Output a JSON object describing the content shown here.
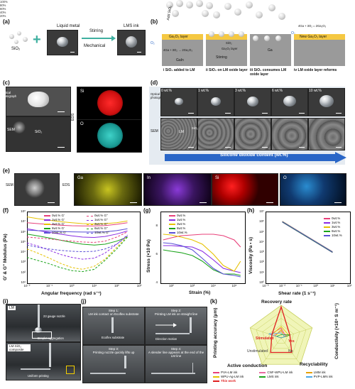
{
  "panels": {
    "a": "(a)",
    "b": "(b)",
    "c": "(c)",
    "d": "(d)",
    "e": "(e)",
    "f": "(f)",
    "g": "(g)",
    "h": "(h)",
    "i": "(i)",
    "j": "(j)",
    "k": "(k)"
  },
  "a": {
    "sio2": "SiO₂",
    "liquid_metal": "Liquid metal",
    "stirring": "Stirring",
    "mechanical": "Mechanical",
    "lms_ink": "LMS ink"
  },
  "b": {
    "add_sio2": "Add SiO₂",
    "o2": "O₂",
    "ga2o3_layer": "Ga₂O₃ layer",
    "reaction1": "4Ga + 3O₂ → 2Ga₂O₃",
    "gain": "GaIn",
    "sio2": "SiO₂",
    "ga2o3_small": "Ga₂O₃ layer",
    "stirring": "Stirring",
    "ga": "Ga",
    "reaction2": "4Ga + 3O₂ = 2Ga₂O₃",
    "new_layer": "New Ga₂O₃ layer",
    "step1": "i SiO₂ added to LM",
    "step2": "ii SiO₂ on LM oxide layer",
    "step3": "iii SiO₂ consumes LM oxide layer",
    "step4": "iv LM oxide layer reforms"
  },
  "c": {
    "optical": "Optical photograph",
    "sem": "SEM",
    "eds": "EDS",
    "si": "Si",
    "o": "O",
    "sio2": "SiO₂"
  },
  "d": {
    "optical": "Optical photograph",
    "sem": "SEM",
    "labels": [
      "0 wt.%",
      "1 wt.%",
      "3 wt.%",
      "6 wt.%",
      "10 wt.%"
    ],
    "lm": "LM",
    "sio2": "SiO₂",
    "arrow": "Silicone dioxide content (wt.%)"
  },
  "e": {
    "sem": "SEM",
    "eds": "EDS",
    "ga": "Ga",
    "in": "In",
    "si": "Si",
    "o": "O"
  },
  "f": {
    "ylabel": "G' & G'' Modulus (Pa)",
    "xlabel": "Angular frequency (rad s⁻¹)",
    "yticks": [
      "10⁸",
      "10⁷",
      "10⁶",
      "10⁵",
      "10⁴",
      "10³",
      "10²",
      "10¹"
    ],
    "xticks": [
      "10⁻²",
      "10⁻¹",
      "10⁰",
      "10¹",
      "10²",
      "10³"
    ],
    "legend": [
      "0wt.% G'",
      "1wt.% G'",
      "3wt.% G'",
      "6wt.% G'",
      "10wt.% G'",
      "0wt.% G''",
      "1wt.% G''",
      "3wt.% G''",
      "6wt.% G''",
      "10wt.% G''"
    ]
  },
  "g": {
    "ylabel": "Stress (×10 Pa)",
    "xlabel": "Strain (%)",
    "yticks": [
      "8",
      "6",
      "4"
    ],
    "xticks": [
      "10²",
      "10³",
      "10⁴",
      "10⁵"
    ],
    "legend": [
      "0wt.%",
      "1wt.%",
      "3wt.%",
      "6wt.%",
      "10wt.%"
    ]
  },
  "h": {
    "ylabel": "Viscosity (Pa • s)",
    "xlabel": "Shear rate (1 s⁻¹)",
    "yticks": [
      "10⁷",
      "10⁶",
      "10⁵",
      "10⁴",
      "10³",
      "10²",
      "10¹",
      "10⁰"
    ],
    "xticks": [
      "10⁻³",
      "10⁻²",
      "10⁻¹",
      "10⁰",
      "10¹",
      "10²"
    ],
    "legend": [
      "0wt.%",
      "1wt.%",
      "3wt.%",
      "6wt.%",
      "10wt.%"
    ]
  },
  "i": {
    "lm": "LM",
    "nozzle": "23 gauge nozzle",
    "droplet": "Droplet aggregation",
    "lm_sio2": "LM-SiO₂ composite",
    "uniform": "Uniform printing"
  },
  "j": {
    "step1": "Step 1:\nLM ink contact on Ecoflex substrate",
    "step2": "Step 2:\nPrinting LM ink on straight line",
    "step3": "Step 3:\nPrinting nozzle quickly lifts up",
    "step4": "Step 4:\nA slender line appears at the end of the LM line",
    "ecoflex": "Ecoflex substrate",
    "direction": "Direction motion"
  },
  "k": {
    "axes": [
      "Recovery rate",
      "Conductivity (×10⁵ S m⁻¹)",
      "Recyclability",
      "Active conduction",
      "Printing accuracy (μm)"
    ],
    "rticks": [
      "100%",
      "80%",
      "60%",
      "40%",
      "20%"
    ],
    "stimulated": "Stimulated",
    "unstimulated": "Unstimulated",
    "yes": "Yes",
    "no": "No",
    "legend": [
      "PVA-LM ink",
      "CNF-WPU-LM ink",
      "LMM ink",
      "WPU-Ag-LM ink",
      "LMS ink",
      "PVP-LMN ink",
      "This work"
    ]
  },
  "colors": {
    "c0": "#e8407a",
    "c1": "#8a2be2",
    "c3": "#e6c200",
    "c6": "#19a319",
    "c10": "#5a4fd6",
    "arrow": "#2a66c7",
    "radar_fill": "#f0f5b8",
    "radar_edge": "#c8d060"
  },
  "chart_data": [
    {
      "type": "line",
      "title": "",
      "xlabel": "Angular frequency (rad s⁻¹)",
      "ylabel": "G' & G'' Modulus (Pa)",
      "xscale": "log",
      "yscale": "log",
      "xlim": [
        0.01,
        1000
      ],
      "ylim": [
        10,
        100000000
      ],
      "x": [
        0.01,
        0.03,
        0.1,
        0.3,
        1,
        3,
        10,
        30,
        100,
        300
      ],
      "series": [
        {
          "name": "0wt.% G'",
          "values": [
            8000000,
            6500000,
            5200000,
            4500000,
            4000000,
            3800000,
            3800000,
            4200000,
            5500000,
            8000000
          ]
        },
        {
          "name": "1wt.% G'",
          "values": [
            2000000,
            1300000,
            900000,
            600000,
            400000,
            300000,
            280000,
            350000,
            600000,
            1200000
          ]
        },
        {
          "name": "3wt.% G'",
          "values": [
            30000000,
            20000000,
            14000000,
            10000000,
            8000000,
            6500000,
            6000000,
            6500000,
            8000000,
            12000000
          ]
        },
        {
          "name": "6wt.% G'",
          "values": [
            600000,
            400000,
            250000,
            150000,
            90000,
            60000,
            50000,
            60000,
            120000,
            300000
          ]
        },
        {
          "name": "10wt.% G'",
          "values": [
            1500000,
            1300000,
            1200000,
            1100000,
            1000000,
            950000,
            950000,
            1000000,
            1300000,
            2000000
          ]
        },
        {
          "name": "0wt.% G''",
          "values": [
            300000,
            250000,
            200000,
            150000,
            120000,
            100000,
            90000,
            120000,
            300000,
            1000000
          ]
        },
        {
          "name": "1wt.% G''",
          "values": [
            80000,
            40000,
            15000,
            6000,
            3000,
            2000,
            2500,
            8000,
            60000,
            500000
          ]
        },
        {
          "name": "3wt.% G''",
          "values": [
            20000,
            8000,
            2500,
            800,
            300,
            200,
            400,
            2000,
            30000,
            400000
          ]
        },
        {
          "name": "6wt.% G''",
          "values": [
            3000,
            1500,
            700,
            300,
            150,
            120,
            200,
            1500,
            20000,
            300000
          ]
        },
        {
          "name": "10wt.% G''",
          "values": [
            50000,
            30000,
            20000,
            15000,
            12000,
            11000,
            12000,
            20000,
            60000,
            400000
          ]
        }
      ]
    },
    {
      "type": "line",
      "title": "",
      "xlabel": "Strain (%)",
      "ylabel": "Stress (×10 Pa)",
      "xscale": "log",
      "xlim": [
        30,
        300000
      ],
      "ylim": [
        4,
        9
      ],
      "x": [
        40,
        100,
        300,
        1000,
        3000,
        10000,
        30000,
        100000,
        200000
      ],
      "series": [
        {
          "name": "0wt.%",
          "values": [
            7.0,
            7.15,
            7.3,
            7.35,
            7.4,
            7.4,
            7.3,
            7.0,
            6.5
          ]
        },
        {
          "name": "1wt.%",
          "values": [
            6.6,
            6.6,
            6.55,
            6.5,
            6.2,
            5.6,
            5.0,
            4.8,
            4.7
          ]
        },
        {
          "name": "3wt.%",
          "values": [
            7.4,
            7.35,
            7.2,
            7.0,
            6.7,
            6.0,
            5.2,
            4.8,
            5.5
          ]
        },
        {
          "name": "6wt.%",
          "values": [
            6.3,
            6.2,
            6.1,
            5.9,
            5.5,
            4.9,
            4.6,
            4.6,
            4.5
          ]
        },
        {
          "name": "10wt.%",
          "values": [
            6.8,
            6.75,
            6.6,
            6.3,
            5.7,
            5.0,
            4.6,
            4.5,
            4.4
          ]
        }
      ]
    },
    {
      "type": "line",
      "title": "",
      "xlabel": "Shear rate (1 s⁻¹)",
      "ylabel": "Viscosity (Pa • s)",
      "xscale": "log",
      "yscale": "log",
      "xlim": [
        0.001,
        100
      ],
      "ylim": [
        1,
        10000000
      ],
      "x": [
        0.01,
        0.1,
        1,
        10
      ],
      "series": [
        {
          "name": "0wt.%",
          "values": [
            1000000,
            100000,
            10000,
            1000
          ]
        },
        {
          "name": "1wt.%",
          "values": [
            900000,
            90000,
            9000,
            900
          ]
        },
        {
          "name": "3wt.%",
          "values": [
            1100000,
            110000,
            11000,
            1100
          ]
        },
        {
          "name": "6wt.%",
          "values": [
            950000,
            95000,
            9500,
            950
          ]
        },
        {
          "name": "10wt.%",
          "values": [
            1050000,
            105000,
            10500,
            1050
          ]
        }
      ]
    },
    {
      "type": "radar",
      "title": "",
      "axes": [
        "Recovery rate",
        "Conductivity (×10⁵ S m⁻¹)",
        "Recyclability",
        "Active conduction",
        "Printing accuracy (μm)"
      ],
      "rmax": 100,
      "series": [
        {
          "name": "PVA-LM ink",
          "values": [
            30,
            15,
            0,
            0,
            35
          ]
        },
        {
          "name": "CNF-WPU-LM ink",
          "values": [
            20,
            20,
            0,
            0,
            25
          ]
        },
        {
          "name": "LMM ink",
          "values": [
            25,
            10,
            0,
            0,
            20
          ]
        },
        {
          "name": "WPU-Ag-LM ink",
          "values": [
            35,
            25,
            0,
            0,
            30
          ]
        },
        {
          "name": "LMS ink",
          "values": [
            10,
            30,
            0,
            0,
            15
          ]
        },
        {
          "name": "PVP-LMN ink",
          "values": [
            15,
            12,
            0,
            0,
            40
          ]
        },
        {
          "name": "This work",
          "values": [
            95,
            28,
            55,
            55,
            30
          ]
        }
      ]
    }
  ]
}
